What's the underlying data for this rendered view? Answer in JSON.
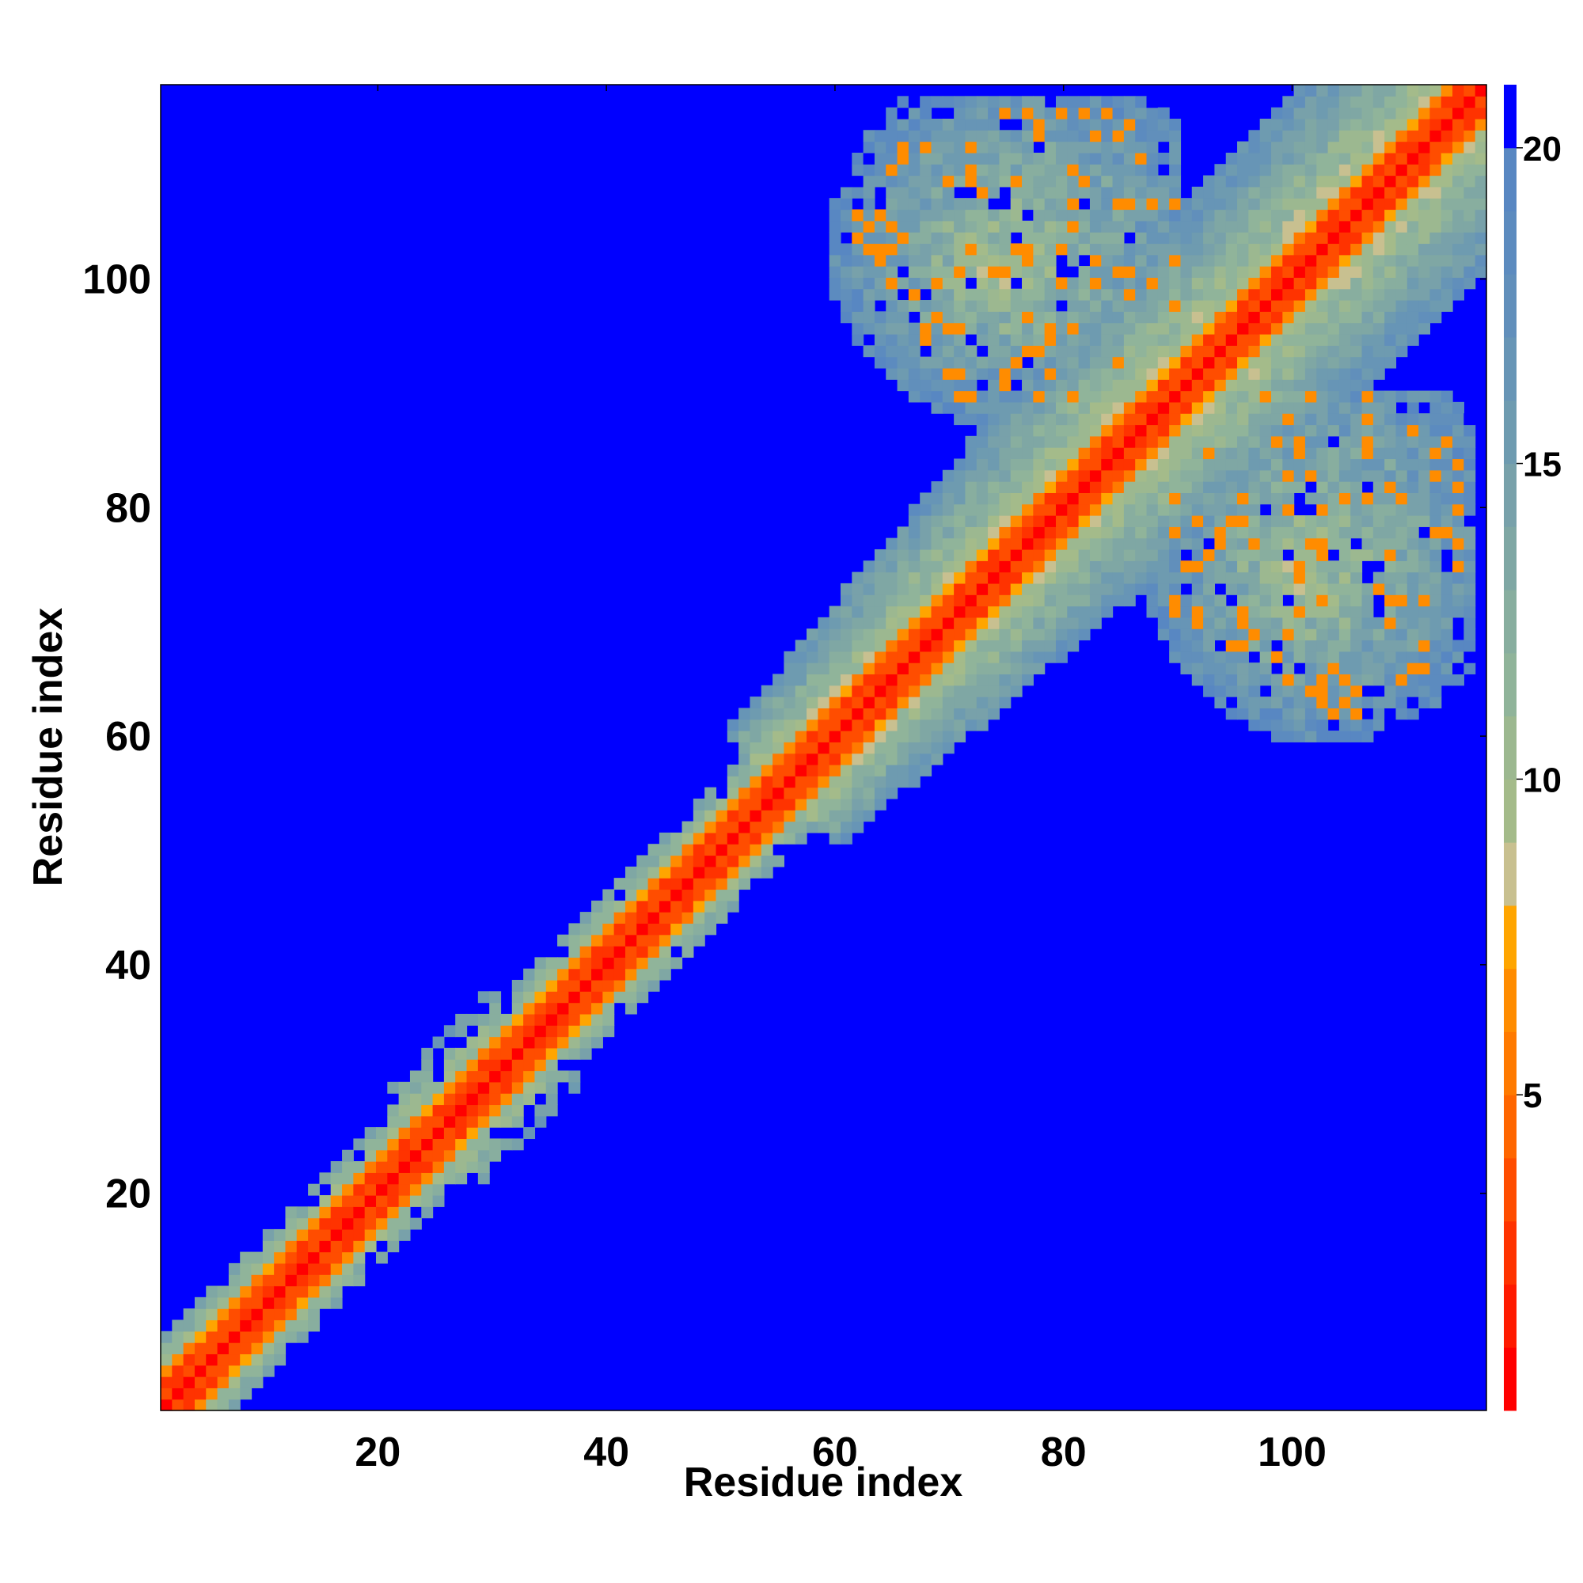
{
  "chart_data": {
    "type": "heatmap",
    "title": "",
    "xlabel": "Residue index",
    "ylabel": "Residue index",
    "n_residues": 117,
    "xlim": [
      1,
      117
    ],
    "ylim": [
      1,
      117
    ],
    "x_ticks": [
      20,
      40,
      60,
      80,
      100
    ],
    "y_ticks": [
      20,
      40,
      60,
      80,
      100
    ],
    "x_tick_labels": [
      "20",
      "40",
      "60",
      "80",
      "100"
    ],
    "y_tick_labels": [
      "20",
      "40",
      "60",
      "80",
      "100"
    ],
    "colorbar": {
      "range": [
        0,
        21
      ],
      "ticks": [
        5,
        10,
        15,
        20
      ],
      "tick_labels": [
        "5",
        "10",
        "15",
        "20"
      ],
      "levels": [
        {
          "from": 0,
          "to": 1,
          "color": "#ff0000"
        },
        {
          "from": 1,
          "to": 2,
          "color": "#ff1a00"
        },
        {
          "from": 2,
          "to": 3,
          "color": "#ff3300"
        },
        {
          "from": 3,
          "to": 4,
          "color": "#ff4d00"
        },
        {
          "from": 4,
          "to": 5,
          "color": "#ff6600"
        },
        {
          "from": 5,
          "to": 6,
          "color": "#ff7a00"
        },
        {
          "from": 6,
          "to": 7,
          "color": "#ff8c00"
        },
        {
          "from": 7,
          "to": 8,
          "color": "#ffa500"
        },
        {
          "from": 8,
          "to": 9,
          "color": "#c8c090"
        },
        {
          "from": 9,
          "to": 10,
          "color": "#a4bb8a"
        },
        {
          "from": 10,
          "to": 11,
          "color": "#9cb890"
        },
        {
          "from": 11,
          "to": 12,
          "color": "#90b49a"
        },
        {
          "from": 12,
          "to": 13,
          "color": "#88ae9f"
        },
        {
          "from": 13,
          "to": 14,
          "color": "#7fa7a4"
        },
        {
          "from": 14,
          "to": 15,
          "color": "#78a1aa"
        },
        {
          "from": 15,
          "to": 16,
          "color": "#6e9bb0"
        },
        {
          "from": 16,
          "to": 17,
          "color": "#6795b6"
        },
        {
          "from": 17,
          "to": 18,
          "color": "#618fbb"
        },
        {
          "from": 18,
          "to": 19,
          "color": "#5c8bbf"
        },
        {
          "from": 19,
          "to": 20,
          "color": "#5887c2"
        },
        {
          "from": 20,
          "to": 21,
          "color": "#0000ff"
        }
      ]
    },
    "background_color": "#0000ff",
    "matrix_description_fields": {
      "diagonal_value": 1,
      "beyond_cutoff_value": 21,
      "features": [
        {
          "kind": "main-diagonal-band",
          "from_residue": 1,
          "to_residue": 117
        },
        {
          "kind": "contact-cluster",
          "x_range": [
            58,
            90
          ],
          "y_range": [
            86,
            115
          ]
        },
        {
          "kind": "contact-cluster",
          "x_range": [
            86,
            116
          ],
          "y_range": [
            56,
            90
          ]
        },
        {
          "kind": "contact-cluster",
          "x_range": [
            22,
            35
          ],
          "y_range": [
            22,
            35
          ]
        },
        {
          "kind": "widened-band",
          "from_residue": 55,
          "to_residue": 117
        }
      ]
    }
  }
}
